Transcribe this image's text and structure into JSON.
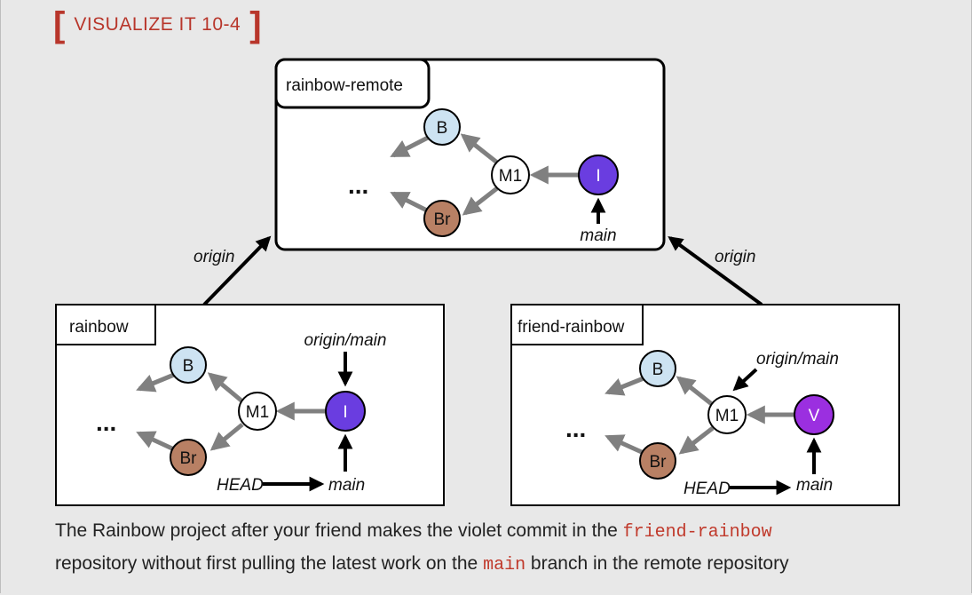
{
  "heading": {
    "open": "[",
    "title": "VISUALIZE IT 10-4",
    "close": "]"
  },
  "colors": {
    "heading": "#b8362b",
    "commit_blue": "#cde3f2",
    "commit_brown": "#b88064",
    "commit_indigo": "#6a3de0",
    "commit_violet": "#9b2fe0",
    "commit_white": "#ffffff",
    "arrow_gray": "#808080",
    "arrow_black": "#000000"
  },
  "remote": {
    "name": "rainbow-remote",
    "ellipsis": "...",
    "commits": {
      "b": "B",
      "br": "Br",
      "m1": "M1",
      "i": "I"
    },
    "branch_main": "main"
  },
  "local": {
    "name": "rainbow",
    "ellipsis": "...",
    "commits": {
      "b": "B",
      "br": "Br",
      "m1": "M1",
      "i": "I"
    },
    "remote_ref": "origin/main",
    "head": "HEAD",
    "branch_main": "main"
  },
  "friend": {
    "name": "friend-rainbow",
    "ellipsis": "...",
    "commits": {
      "b": "B",
      "br": "Br",
      "m1": "M1",
      "v": "V"
    },
    "remote_ref": "origin/main",
    "head": "HEAD",
    "branch_main": "main"
  },
  "links": {
    "left": "origin",
    "right": "origin"
  },
  "caption": {
    "part1": "The Rainbow project after your friend makes the violet commit in the ",
    "code1": "friend-rainbow",
    "part2": " repository without first pulling the latest work on the ",
    "code2": "main",
    "part3": " branch in the remote repository"
  }
}
